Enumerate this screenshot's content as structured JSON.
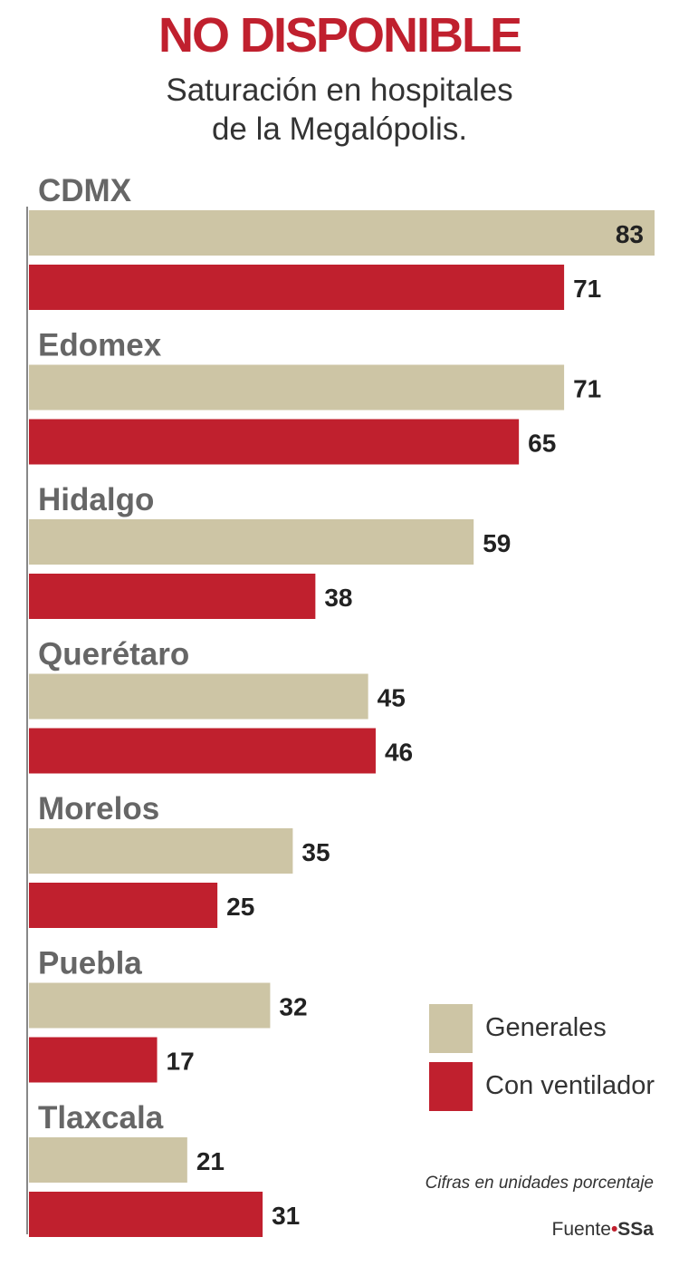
{
  "chart_data": {
    "type": "bar",
    "orientation": "horizontal",
    "title": "NO DISPONIBLE",
    "subtitle_lines": [
      "Saturación en hospitales",
      "de la Megalópolis."
    ],
    "categories": [
      "CDMX",
      "Edomex",
      "Hidalgo",
      "Querétaro",
      "Morelos",
      "Puebla",
      "Tlaxcala"
    ],
    "series": [
      {
        "name": "Generales",
        "color": "#cdc5a5",
        "values": [
          83,
          71,
          59,
          45,
          35,
          32,
          21
        ]
      },
      {
        "name": "Con ventilador",
        "color": "#c0202e",
        "values": [
          71,
          65,
          38,
          46,
          25,
          17,
          31
        ]
      }
    ],
    "xlim": [
      0,
      83
    ],
    "grid": false,
    "legend_position": "bottom-right",
    "note": "Cifras en  unidades porcentaje",
    "source_prefix": "Fuente",
    "source_org": "SSa"
  }
}
